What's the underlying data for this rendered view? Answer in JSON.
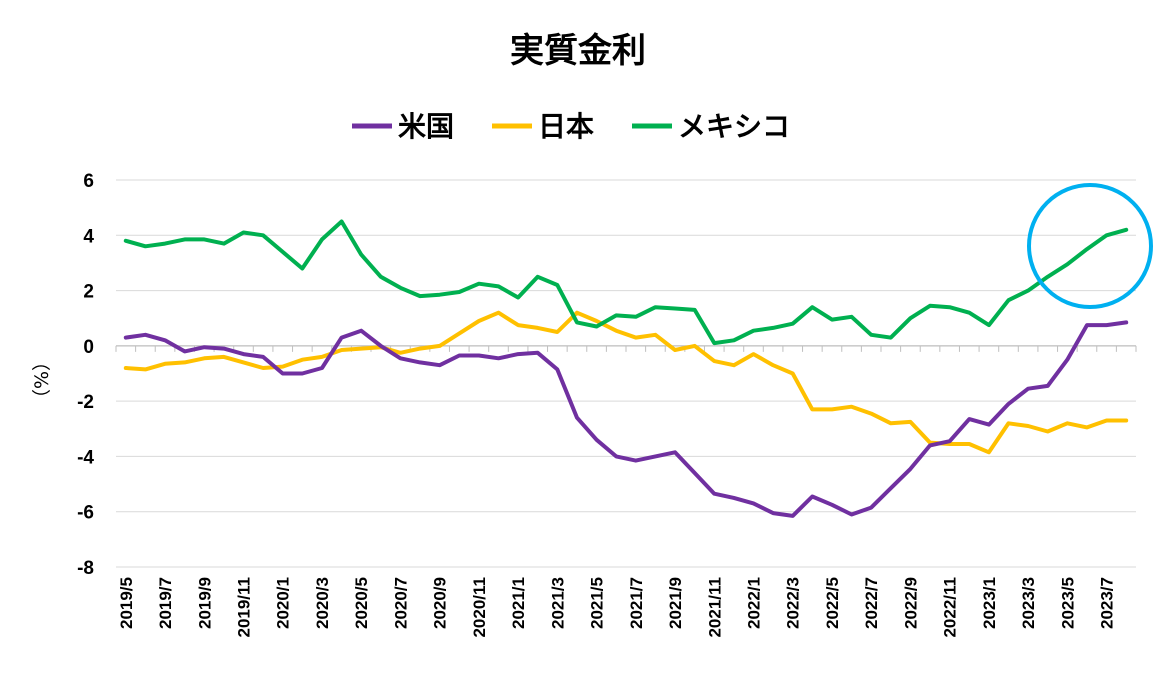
{
  "chart_data": {
    "type": "line",
    "title": "実質金利",
    "ylabel": "（%）",
    "ylim": [
      -8,
      6
    ],
    "yticks": [
      6,
      4,
      2,
      0,
      -2,
      -4,
      -6,
      -8
    ],
    "x": [
      "2019/5",
      "2019/6",
      "2019/7",
      "2019/8",
      "2019/9",
      "2019/10",
      "2019/11",
      "2019/12",
      "2020/1",
      "2020/2",
      "2020/3",
      "2020/4",
      "2020/5",
      "2020/6",
      "2020/7",
      "2020/8",
      "2020/9",
      "2020/10",
      "2020/11",
      "2020/12",
      "2021/1",
      "2021/2",
      "2021/3",
      "2021/4",
      "2021/5",
      "2021/6",
      "2021/7",
      "2021/8",
      "2021/9",
      "2021/10",
      "2021/11",
      "2021/12",
      "2022/1",
      "2022/2",
      "2022/3",
      "2022/4",
      "2022/5",
      "2022/6",
      "2022/7",
      "2022/8",
      "2022/9",
      "2022/10",
      "2022/11",
      "2022/12",
      "2023/1",
      "2023/2",
      "2023/3",
      "2023/4",
      "2023/5",
      "2023/6",
      "2023/7",
      "2023/8"
    ],
    "xtick_labels": [
      "2019/5",
      "2019/7",
      "2019/9",
      "2019/11",
      "2020/1",
      "2020/3",
      "2020/5",
      "2020/7",
      "2020/9",
      "2020/11",
      "2021/1",
      "2021/3",
      "2021/5",
      "2021/7",
      "2021/9",
      "2021/11",
      "2022/1",
      "2022/3",
      "2022/5",
      "2022/7",
      "2022/9",
      "2022/11",
      "2023/1",
      "2023/3",
      "2023/5",
      "2023/7"
    ],
    "legend_position": "top-center",
    "grid": true,
    "series": [
      {
        "name": "米国",
        "color": "#7030a0",
        "values": [
          0.3,
          0.4,
          0.2,
          -0.2,
          -0.05,
          -0.1,
          -0.3,
          -0.4,
          -1.0,
          -1.0,
          -0.8,
          0.3,
          0.55,
          0.0,
          -0.45,
          -0.6,
          -0.7,
          -0.35,
          -0.35,
          -0.45,
          -0.3,
          -0.25,
          -0.85,
          -2.6,
          -3.4,
          -4.0,
          -4.15,
          -4.0,
          -3.85,
          -4.6,
          -5.35,
          -5.5,
          -5.7,
          -6.05,
          -6.15,
          -5.45,
          -5.75,
          -6.1,
          -5.85,
          -5.15,
          -4.45,
          -3.6,
          -3.45,
          -2.65,
          -2.85,
          -2.1,
          -1.55,
          -1.45,
          -0.5,
          0.75,
          0.75,
          0.85
        ]
      },
      {
        "name": "日本",
        "color": "#ffc000",
        "values": [
          -0.8,
          -0.85,
          -0.65,
          -0.6,
          -0.45,
          -0.4,
          -0.6,
          -0.8,
          -0.75,
          -0.5,
          -0.4,
          -0.15,
          -0.1,
          -0.05,
          -0.25,
          -0.1,
          0.0,
          0.45,
          0.9,
          1.2,
          0.75,
          0.65,
          0.5,
          1.2,
          0.9,
          0.55,
          0.3,
          0.4,
          -0.15,
          0.0,
          -0.55,
          -0.7,
          -0.3,
          -0.7,
          -1.0,
          -2.3,
          -2.3,
          -2.2,
          -2.45,
          -2.8,
          -2.75,
          -3.5,
          -3.55,
          -3.55,
          -3.85,
          -2.8,
          -2.9,
          -3.1,
          -2.8,
          -2.95,
          -2.7,
          -2.7
        ]
      },
      {
        "name": "メキシコ",
        "color": "#00b050",
        "values": [
          3.8,
          3.6,
          3.7,
          3.85,
          3.85,
          3.7,
          4.1,
          4.0,
          3.4,
          2.8,
          3.85,
          4.5,
          3.3,
          2.5,
          2.1,
          1.8,
          1.85,
          1.95,
          2.25,
          2.15,
          1.75,
          2.5,
          2.2,
          0.85,
          0.7,
          1.1,
          1.05,
          1.4,
          1.35,
          1.3,
          0.1,
          0.2,
          0.55,
          0.65,
          0.8,
          1.4,
          0.95,
          1.05,
          0.4,
          0.3,
          1.0,
          1.45,
          1.4,
          1.2,
          0.75,
          1.65,
          2.0,
          2.5,
          2.95,
          3.5,
          4.0,
          4.2
        ]
      }
    ],
    "annotations": [
      {
        "type": "circle",
        "color": "#00b0f0"
      }
    ]
  }
}
